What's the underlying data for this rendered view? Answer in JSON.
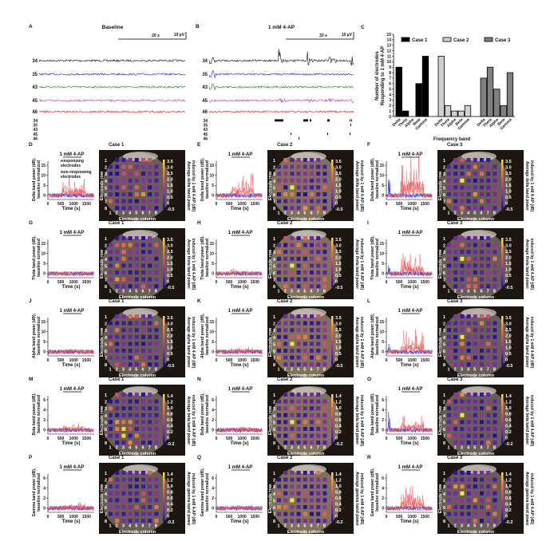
{
  "panelA": {
    "letter": "A",
    "title": "Baseline",
    "scale_time": "20 s",
    "scale_amp": "10 µV"
  },
  "panelB": {
    "letter": "B",
    "title": "1 mM 4-AP",
    "scale_time": "20 s",
    "scale_amp": "10 µV"
  },
  "electrodes": [
    "34",
    "35",
    "43",
    "45",
    "46"
  ],
  "trace_colors": [
    "#111111",
    "#2222dd",
    "#1a8a1a",
    "#cc33cc",
    "#ee2222"
  ],
  "colors": {
    "responding": "#f04a4a",
    "non_responding": "#2020e0",
    "case1": "#000000",
    "case2": "#d0d0d0",
    "case3": "#808080"
  },
  "legend_D": {
    "responding": "Responding electrodes",
    "non_responding": "Non-responding electrodes"
  },
  "cases": [
    "Case 1",
    "Case 2",
    "Case 3"
  ],
  "drug_label": "1 mM 4-AP",
  "xlabel": "Time (s)",
  "xticks": [
    "0",
    "500",
    "1000",
    "1500"
  ],
  "heatmap": {
    "row_label": "Electrode row",
    "col_label": "Electrode column",
    "ticks": [
      "1",
      "2",
      "3",
      "4",
      "5",
      "6",
      "7",
      "8"
    ]
  },
  "rows": [
    {
      "letters": [
        "D",
        "E",
        "F"
      ],
      "ylabel": [
        "Delta band power (dB),",
        "baseline normalized"
      ],
      "yticks": [
        "0",
        "5",
        "10",
        "15"
      ],
      "cbar_ticks": [
        "3.5",
        "3.0",
        "2.5",
        "2.0",
        "1.5",
        "1.0",
        "0.5",
        "0",
        "-0.5"
      ],
      "cbar_label": [
        "Average delta band power",
        "induced by 1 mM 4-AP (dB)"
      ]
    },
    {
      "letters": [
        "G",
        "H",
        "I"
      ],
      "ylabel": [
        "Theta band power (dB),",
        "baseline normalized"
      ],
      "yticks": [
        "0",
        "5",
        "10",
        "15"
      ],
      "cbar_ticks": [
        "3.5",
        "3.0",
        "2.5",
        "2.0",
        "1.5",
        "1.0",
        "0.5",
        "0",
        "-0.5"
      ],
      "cbar_label": [
        "Average theta band power",
        "induced by 1 mM 4-AP (dB)"
      ]
    },
    {
      "letters": [
        "J",
        "K",
        "L"
      ],
      "ylabel": [
        "Alpha band power (dB),",
        "baseline normalized"
      ],
      "yticks": [
        "0",
        "5",
        "10",
        "15"
      ],
      "cbar_ticks": [
        "3.5",
        "3.0",
        "2.5",
        "2.0",
        "1.5",
        "1.0",
        "0.5",
        "0",
        "-0.5"
      ],
      "cbar_label": [
        "Average alpha band power",
        "induced by 1 mM 4-AP (dB)"
      ]
    },
    {
      "letters": [
        "M",
        "N",
        "O"
      ],
      "ylabel": [
        "Beta band power (dB),",
        "baseline normalized"
      ],
      "yticks": [
        "0",
        "2",
        "4",
        "6"
      ],
      "cbar_ticks": [
        "1.4",
        "1.2",
        "1.0",
        "0.8",
        "0.6",
        "0.4",
        "0.2",
        "0",
        "-0.2"
      ],
      "cbar_label": [
        "Average beta band power",
        "induced by 1 mM 4-AP (dB)"
      ]
    },
    {
      "letters": [
        "P",
        "Q",
        "R"
      ],
      "ylabel": [
        "Gamma band power (dB),",
        "baseline normalized"
      ],
      "yticks": [
        "0",
        "2",
        "4",
        "6"
      ],
      "cbar_ticks": [
        "1.4",
        "1.2",
        "1.0",
        "0.8",
        "0.6",
        "0.4",
        "0.2",
        "0",
        "-0.2"
      ],
      "cbar_label": [
        "Average gamma band power",
        "induced by 1 mM 4-AP (dB)"
      ]
    }
  ],
  "chart_data": {
    "type": "bar",
    "letter": "C",
    "categories": [
      "Delta",
      "Theta",
      "Alpha",
      "Beta",
      "Gamma"
    ],
    "series": [
      {
        "name": "Case 1",
        "values": [
          9,
          1,
          0,
          6,
          11
        ]
      },
      {
        "name": "Case 2",
        "values": [
          11,
          2,
          1,
          1,
          2
        ]
      },
      {
        "name": "Case 3",
        "values": [
          7,
          9,
          5,
          2,
          8
        ]
      }
    ],
    "xlabel": "Frequency band",
    "ylabel": [
      "Number of electrodes",
      "Responding to 1 mM 4-AP"
    ],
    "ylim": [
      0,
      15
    ],
    "yticks": [
      "0",
      "1",
      "2",
      "3",
      "4",
      "5",
      "6",
      "7",
      "8",
      "9",
      "10",
      "11",
      "12",
      "13",
      "14",
      "15"
    ],
    "legend": "top"
  }
}
